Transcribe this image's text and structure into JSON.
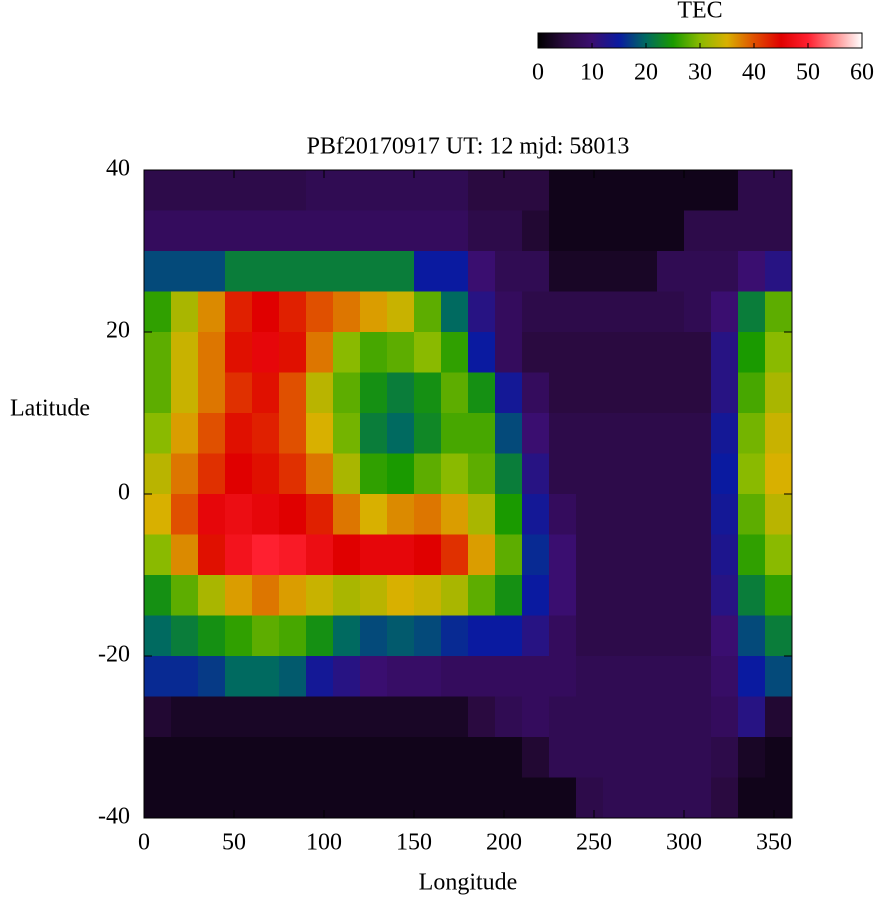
{
  "chart_data": {
    "type": "heatmap",
    "title": "PBf20170917  UT: 12  mjd: 58013",
    "xlabel": "Longitude",
    "ylabel": "Latitude",
    "xlim": [
      0,
      360
    ],
    "ylim": [
      -40,
      40
    ],
    "xticks": [
      0,
      50,
      100,
      150,
      200,
      250,
      300,
      350
    ],
    "yticks": [
      -40,
      -20,
      0,
      20,
      40
    ],
    "x": [
      7.5,
      22.5,
      37.5,
      52.5,
      67.5,
      82.5,
      97.5,
      112.5,
      127.5,
      142.5,
      157.5,
      172.5,
      187.5,
      202.5,
      217.5,
      232.5,
      247.5,
      262.5,
      277.5,
      292.5,
      307.5,
      322.5,
      337.5,
      352.5
    ],
    "y": [
      37.5,
      32.5,
      27.5,
      22.5,
      17.5,
      12.5,
      7.5,
      2.5,
      -2.5,
      -7.5,
      -12.5,
      -17.5,
      -22.5,
      -27.5,
      -32.5,
      -37.5
    ],
    "values": [
      [
        6,
        6,
        6,
        6,
        6,
        6,
        7,
        7,
        7,
        7,
        7,
        7,
        5,
        5,
        5,
        2,
        2,
        2,
        2,
        2,
        2,
        2,
        6,
        6
      ],
      [
        8,
        8,
        8,
        8,
        8,
        8,
        8,
        8,
        8,
        8,
        8,
        8,
        6,
        6,
        4,
        2,
        2,
        2,
        2,
        2,
        6,
        6,
        6,
        6
      ],
      [
        18,
        18,
        18,
        22,
        22,
        22,
        22,
        22,
        22,
        22,
        15,
        15,
        10,
        7,
        7,
        3,
        3,
        3,
        3,
        7,
        7,
        7,
        10,
        12
      ],
      [
        26,
        32,
        37,
        43,
        45,
        43,
        40,
        38,
        36,
        34,
        28,
        20,
        12,
        8,
        6,
        6,
        6,
        6,
        6,
        6,
        7,
        10,
        22,
        28
      ],
      [
        28,
        34,
        38,
        44,
        46,
        44,
        38,
        30,
        27,
        28,
        30,
        26,
        15,
        8,
        5,
        5,
        5,
        5,
        5,
        5,
        5,
        12,
        25,
        30
      ],
      [
        28,
        34,
        38,
        42,
        44,
        40,
        33,
        28,
        24,
        22,
        24,
        28,
        24,
        14,
        8,
        5,
        5,
        5,
        5,
        5,
        5,
        12,
        27,
        32
      ],
      [
        30,
        36,
        40,
        44,
        43,
        40,
        35,
        29,
        22,
        20,
        23,
        27,
        27,
        18,
        10,
        6,
        6,
        6,
        6,
        6,
        6,
        14,
        29,
        34
      ],
      [
        33,
        38,
        42,
        45,
        44,
        42,
        38,
        32,
        26,
        25,
        28,
        30,
        28,
        22,
        12,
        6,
        6,
        6,
        6,
        6,
        6,
        15,
        30,
        35
      ],
      [
        35,
        40,
        46,
        47,
        46,
        45,
        43,
        38,
        35,
        37,
        38,
        36,
        32,
        25,
        14,
        8,
        6,
        6,
        6,
        6,
        6,
        14,
        28,
        33
      ],
      [
        30,
        37,
        44,
        48,
        50,
        49,
        47,
        45,
        46,
        46,
        45,
        42,
        36,
        28,
        16,
        10,
        6,
        6,
        6,
        6,
        6,
        13,
        26,
        30
      ],
      [
        24,
        28,
        32,
        36,
        38,
        36,
        34,
        32,
        33,
        35,
        34,
        32,
        28,
        24,
        15,
        10,
        6,
        6,
        6,
        6,
        6,
        12,
        22,
        26
      ],
      [
        20,
        22,
        24,
        26,
        28,
        27,
        24,
        20,
        18,
        19,
        18,
        16,
        15,
        15,
        12,
        8,
        6,
        6,
        6,
        6,
        6,
        10,
        18,
        22
      ],
      [
        16,
        16,
        17,
        20,
        20,
        19,
        14,
        12,
        10,
        9,
        9,
        8,
        8,
        8,
        8,
        8,
        7,
        7,
        7,
        7,
        7,
        9,
        15,
        18
      ],
      [
        4,
        3,
        3,
        3,
        3,
        3,
        3,
        3,
        3,
        3,
        3,
        3,
        5,
        7,
        8,
        7,
        7,
        7,
        7,
        7,
        7,
        8,
        12,
        4
      ],
      [
        2,
        2,
        2,
        2,
        2,
        2,
        2,
        2,
        2,
        2,
        2,
        2,
        2,
        2,
        4,
        7,
        7,
        7,
        7,
        7,
        7,
        6,
        3,
        2
      ],
      [
        2,
        2,
        2,
        2,
        2,
        2,
        2,
        2,
        2,
        2,
        2,
        2,
        2,
        2,
        2,
        2,
        6,
        7,
        7,
        7,
        7,
        5,
        2,
        2
      ]
    ],
    "colormap": [
      "#000000",
      "#2a0a40",
      "#3a0e70",
      "#0a1aa0",
      "#006a60",
      "#1a9a00",
      "#8aba00",
      "#d8b000",
      "#e05000",
      "#e00000",
      "#ff2030",
      "#ff9090",
      "#ffffff"
    ],
    "colorbar": {
      "label": "TEC",
      "lim": [
        0,
        60
      ],
      "ticks": [
        0,
        10,
        20,
        30,
        40,
        50,
        60
      ]
    }
  }
}
